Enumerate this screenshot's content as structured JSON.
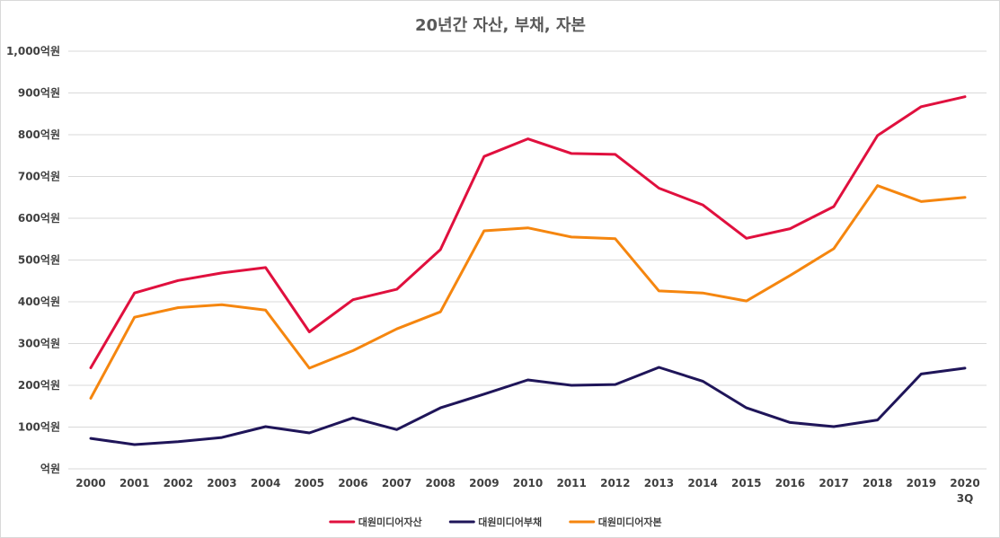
{
  "chart_data": {
    "type": "line",
    "title": "20년간 자산, 부채, 자본",
    "xlabel": "",
    "ylabel": "",
    "categories": [
      "2000",
      "2001",
      "2002",
      "2003",
      "2004",
      "2005",
      "2006",
      "2007",
      "2008",
      "2009",
      "2010",
      "2011",
      "2012",
      "2013",
      "2014",
      "2015",
      "2016",
      "2017",
      "2018",
      "2019",
      "2020\n3Q"
    ],
    "y_tick_labels": [
      "억원",
      "100억원",
      "200억원",
      "300억원",
      "400억원",
      "500억원",
      "600억원",
      "700억원",
      "800억원",
      "900억원",
      "1,000억원"
    ],
    "y_ticks": [
      0,
      100,
      200,
      300,
      400,
      500,
      600,
      700,
      800,
      900,
      1000
    ],
    "ylim": [
      0,
      1000
    ],
    "grid": true,
    "legend_position": "bottom",
    "series": [
      {
        "name": "대원미디어자산",
        "color": "#e0103e",
        "values": [
          242,
          421,
          451,
          469,
          482,
          328,
          405,
          430,
          525,
          748,
          790,
          755,
          753,
          672,
          632,
          552,
          575,
          628,
          798,
          867,
          891
        ]
      },
      {
        "name": "대원미디어부채",
        "color": "#1f1559",
        "values": [
          73,
          58,
          65,
          75,
          101,
          86,
          122,
          94,
          146,
          179,
          213,
          200,
          202,
          243,
          210,
          146,
          111,
          101,
          117,
          227,
          241
        ]
      },
      {
        "name": "대원미디어자본",
        "color": "#f5860f",
        "values": [
          169,
          363,
          386,
          393,
          380,
          241,
          283,
          335,
          376,
          570,
          577,
          555,
          551,
          426,
          421,
          402,
          463,
          527,
          678,
          640,
          650
        ]
      }
    ]
  }
}
